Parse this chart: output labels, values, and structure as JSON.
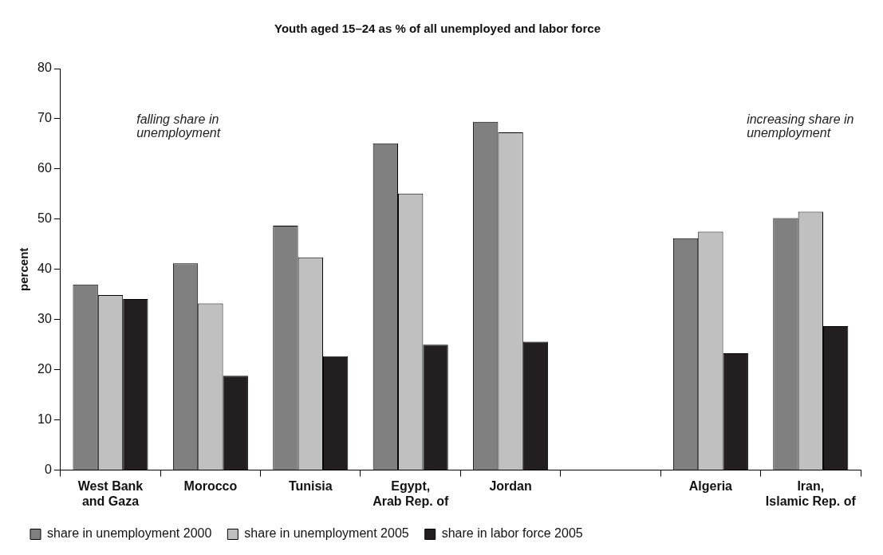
{
  "chart_data": {
    "type": "bar",
    "title": "Youth aged 15–24 as % of all unemployed and labor force",
    "ylabel": "percent",
    "categories": [
      "West Bank\nand Gaza",
      "Morocco",
      "Tunisia",
      "Egypt,\nArab Rep. of",
      "Jordan",
      null,
      "Algeria",
      "Iran,\nIslamic Rep. of"
    ],
    "series": [
      {
        "name": "share in unemployment 2000",
        "color": "#808080",
        "values": [
          37.0,
          41.2,
          48.7,
          65.1,
          69.4,
          null,
          46.2,
          50.2
        ]
      },
      {
        "name": "share in unemployment 2005",
        "color": "#c0c0c0",
        "values": [
          34.9,
          33.2,
          42.4,
          55.1,
          67.3,
          null,
          47.5,
          51.5
        ]
      },
      {
        "name": "share in labor force 2005",
        "color": "#231f20",
        "values": [
          34.1,
          18.8,
          22.7,
          25.0,
          25.6,
          null,
          23.3,
          28.7
        ]
      }
    ],
    "ylim": [
      0,
      80
    ],
    "yticks": [
      0,
      10,
      20,
      30,
      40,
      50,
      60,
      70,
      80
    ],
    "grid": false,
    "legend": "bottom",
    "annotations": [
      "falling share in\nunemployment",
      "increasing share in\nunemployment"
    ]
  }
}
